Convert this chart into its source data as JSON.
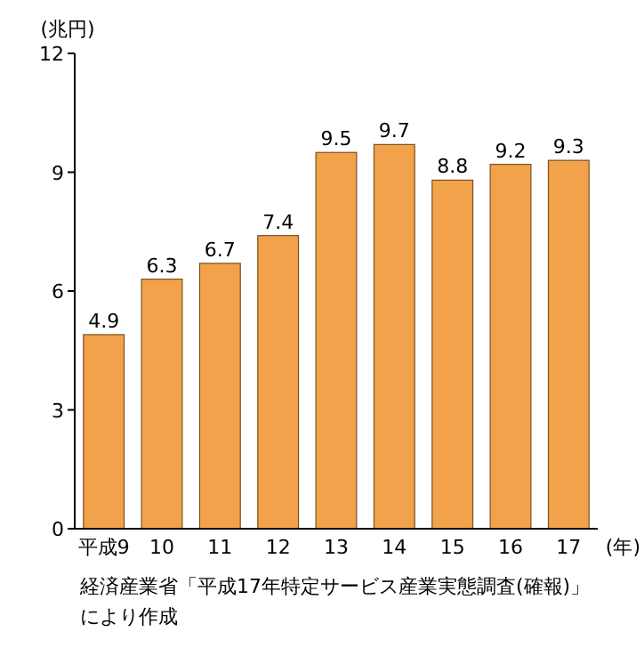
{
  "chart_data": {
    "type": "bar",
    "ylabel": "(兆円)",
    "xlabel": "(年)",
    "categories": [
      "平成9",
      "10",
      "11",
      "12",
      "13",
      "14",
      "15",
      "16",
      "17"
    ],
    "values": [
      4.9,
      6.3,
      6.7,
      7.4,
      9.5,
      9.7,
      8.8,
      9.2,
      9.3
    ],
    "color": "#f2a24a",
    "ylim": [
      0,
      12
    ],
    "yticks": [
      0,
      3,
      6,
      9,
      12
    ],
    "data_labels": true,
    "annotations": [
      "経済産業省「平成17年特定サービス産業実態調査(確報)」",
      "により作成"
    ]
  }
}
